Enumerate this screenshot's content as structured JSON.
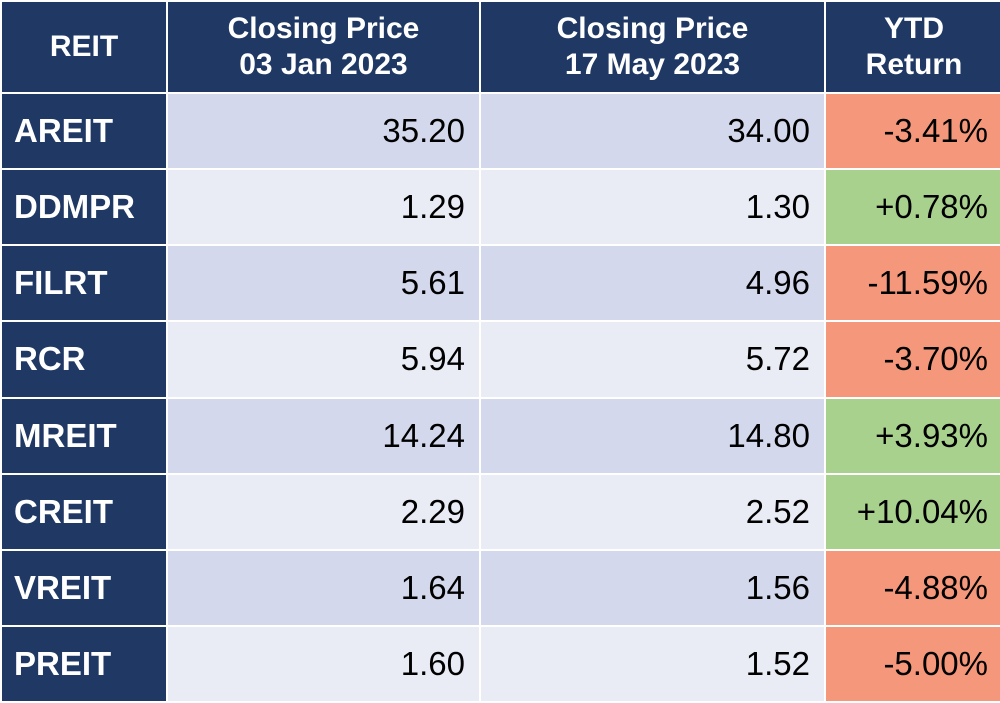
{
  "header": {
    "col1": "REIT",
    "col2_line1": "Closing Price",
    "col2_line2": "03 Jan 2023",
    "col3_line1": "Closing Price",
    "col3_line2": "17 May 2023",
    "col4_line1": "YTD",
    "col4_line2": "Return"
  },
  "colors": {
    "header_bg": "#1f3864",
    "positive_bg": "#a9d18e",
    "negative_bg": "#f4977a",
    "row_odd_bg": "#d3d8ec",
    "row_even_bg": "#e9ebf5"
  },
  "rows": [
    {
      "reit": "AREIT",
      "jan": "35.20",
      "may": "34.00",
      "ytd": "-3.41%",
      "sign": "negative"
    },
    {
      "reit": "DDMPR",
      "jan": "1.29",
      "may": "1.30",
      "ytd": "+0.78%",
      "sign": "positive"
    },
    {
      "reit": "FILRT",
      "jan": "5.61",
      "may": "4.96",
      "ytd": "-11.59%",
      "sign": "negative"
    },
    {
      "reit": "RCR",
      "jan": "5.94",
      "may": "5.72",
      "ytd": "-3.70%",
      "sign": "negative"
    },
    {
      "reit": "MREIT",
      "jan": "14.24",
      "may": "14.80",
      "ytd": "+3.93%",
      "sign": "positive"
    },
    {
      "reit": "CREIT",
      "jan": "2.29",
      "may": "2.52",
      "ytd": "+10.04%",
      "sign": "positive"
    },
    {
      "reit": "VREIT",
      "jan": "1.64",
      "may": "1.56",
      "ytd": "-4.88%",
      "sign": "negative"
    },
    {
      "reit": "PREIT",
      "jan": "1.60",
      "may": "1.52",
      "ytd": "-5.00%",
      "sign": "negative"
    }
  ]
}
